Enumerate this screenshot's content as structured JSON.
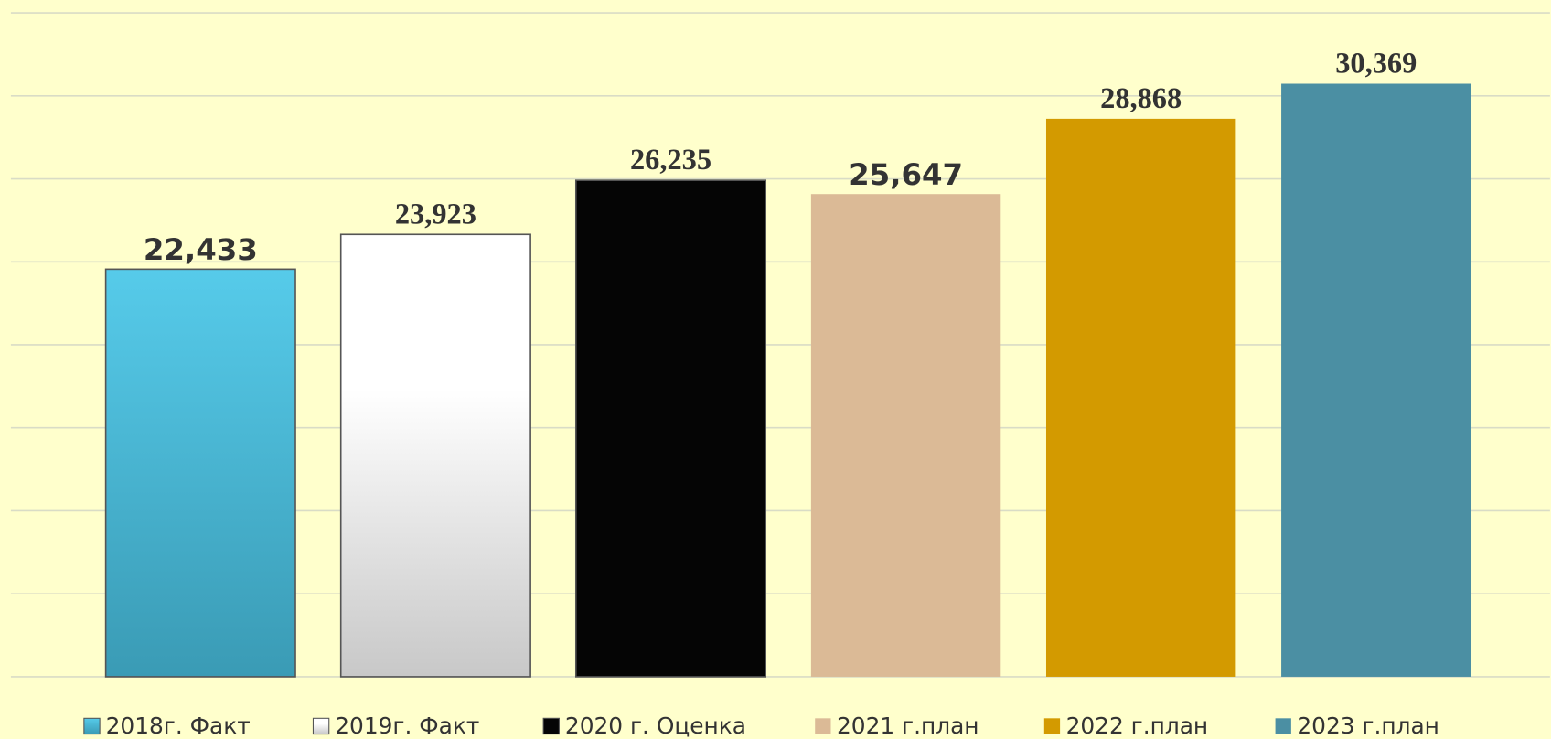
{
  "chart_data": {
    "type": "bar",
    "series": [
      {
        "name": "2018г. Факт",
        "color": "#4fc4e2",
        "values": [
          22.433
        ],
        "value_labels": [
          "22,433"
        ]
      },
      {
        "name": "2019г. Факт",
        "color": "#f2f2f2",
        "values": [
          23.923
        ],
        "value_labels": [
          "23,923"
        ]
      },
      {
        "name": "2020 г. Оценка",
        "color": "#050505",
        "values": [
          26.235
        ],
        "value_labels": [
          "26,235"
        ]
      },
      {
        "name": "2021 г.план",
        "color": "#dbba96",
        "values": [
          25.647
        ],
        "value_labels": [
          "25,647"
        ]
      },
      {
        "name": "2022 г.план",
        "color": "#d39a00",
        "values": [
          28.868
        ],
        "value_labels": [
          "28,868"
        ]
      },
      {
        "name": "2023 г.план",
        "color": "#4b8fa3",
        "values": [
          30.369
        ],
        "value_labels": [
          "30,369"
        ]
      }
    ],
    "ylim": [
      5,
      33.4
    ],
    "yticks": [
      5,
      8.55,
      12.1,
      15.65,
      19.2,
      22.75,
      26.3,
      29.85,
      33.4
    ],
    "grid": true,
    "legend": "bottom"
  }
}
